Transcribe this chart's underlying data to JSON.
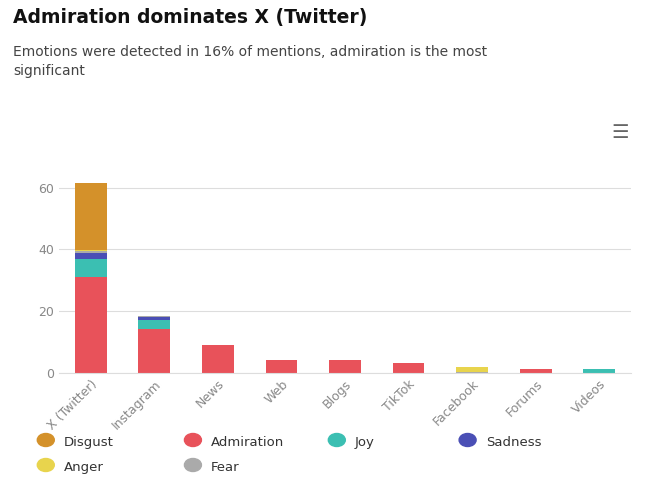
{
  "title": "Admiration dominates X (Twitter)",
  "subtitle": "Emotions were detected in 16% of mentions, admiration is the most\nsignificant",
  "categories": [
    "X (Twitter)",
    "Instagram",
    "News",
    "Web",
    "Blogs",
    "TikTok",
    "Facebook",
    "Forums",
    "Videos"
  ],
  "emotions": {
    "Admiration": {
      "color": "#e8525a",
      "values": [
        31,
        14,
        9,
        4,
        4,
        3,
        0,
        1,
        0
      ]
    },
    "Joy": {
      "color": "#3bbfb2",
      "values": [
        6,
        3,
        0,
        0,
        0,
        0,
        0,
        0,
        1
      ]
    },
    "Sadness": {
      "color": "#4a4fb5",
      "values": [
        2,
        1,
        0,
        0,
        0,
        0,
        0,
        0,
        0
      ]
    },
    "Fear": {
      "color": "#aaaaaa",
      "values": [
        0.4,
        0.5,
        0,
        0,
        0,
        0,
        0.3,
        0,
        0
      ]
    },
    "Anger": {
      "color": "#e8d44d",
      "values": [
        0.3,
        0,
        0,
        0,
        0,
        0,
        1.5,
        0,
        0
      ]
    },
    "Disgust": {
      "color": "#d4912a",
      "values": [
        22,
        0,
        0,
        0,
        0,
        0,
        0,
        0,
        0
      ]
    }
  },
  "emotion_order": [
    "Admiration",
    "Joy",
    "Sadness",
    "Fear",
    "Anger",
    "Disgust"
  ],
  "ylim": [
    0,
    65
  ],
  "yticks": [
    0,
    20,
    40,
    60
  ],
  "bg_color": "#ffffff",
  "grid_color": "#dddddd",
  "tick_color": "#888888",
  "legend": [
    {
      "label": "Disgust",
      "color": "#d4912a"
    },
    {
      "label": "Admiration",
      "color": "#e8525a"
    },
    {
      "label": "Joy",
      "color": "#3bbfb2"
    },
    {
      "label": "Sadness",
      "color": "#4a4fb5"
    },
    {
      "label": "Anger",
      "color": "#e8d44d"
    },
    {
      "label": "Fear",
      "color": "#aaaaaa"
    }
  ],
  "bar_width": 0.5
}
